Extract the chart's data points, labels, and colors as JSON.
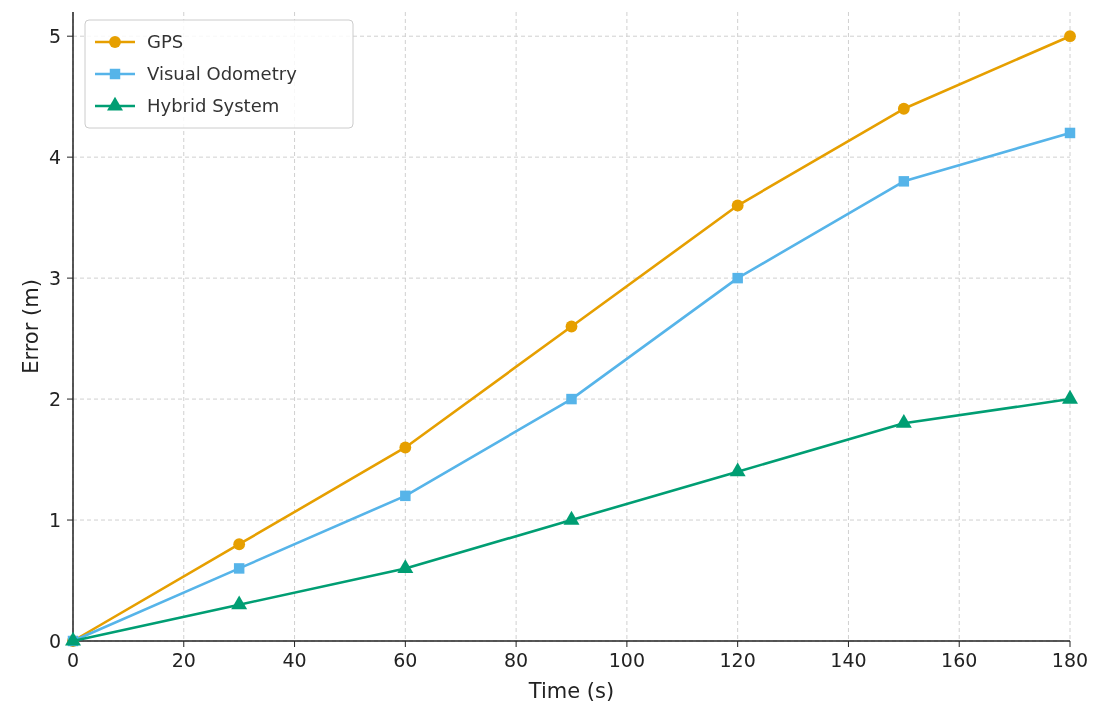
{
  "chart_data": {
    "type": "line",
    "xlabel": "Time (s)",
    "ylabel": "Error (m)",
    "x": [
      0,
      30,
      60,
      90,
      120,
      150,
      180
    ],
    "series": [
      {
        "name": "GPS",
        "color": "#e69f00",
        "marker": "circle",
        "values": [
          0,
          0.8,
          1.6,
          2.6,
          3.6,
          4.4,
          5.0
        ]
      },
      {
        "name": "Visual Odometry",
        "color": "#56b4e9",
        "marker": "square",
        "values": [
          0,
          0.6,
          1.2,
          2.0,
          3.0,
          3.8,
          4.2
        ]
      },
      {
        "name": "Hybrid System",
        "color": "#009e73",
        "marker": "triangle",
        "values": [
          0,
          0.3,
          0.6,
          1.0,
          1.4,
          1.8,
          2.0
        ]
      }
    ],
    "xlim": [
      0,
      180
    ],
    "xticks": [
      0,
      20,
      40,
      60,
      80,
      100,
      120,
      140,
      160,
      180
    ],
    "ylim": [
      0,
      5.2
    ],
    "yticks": [
      0,
      1,
      2,
      3,
      4,
      5
    ],
    "grid": true,
    "legend": "top left",
    "line_style": "solid"
  }
}
